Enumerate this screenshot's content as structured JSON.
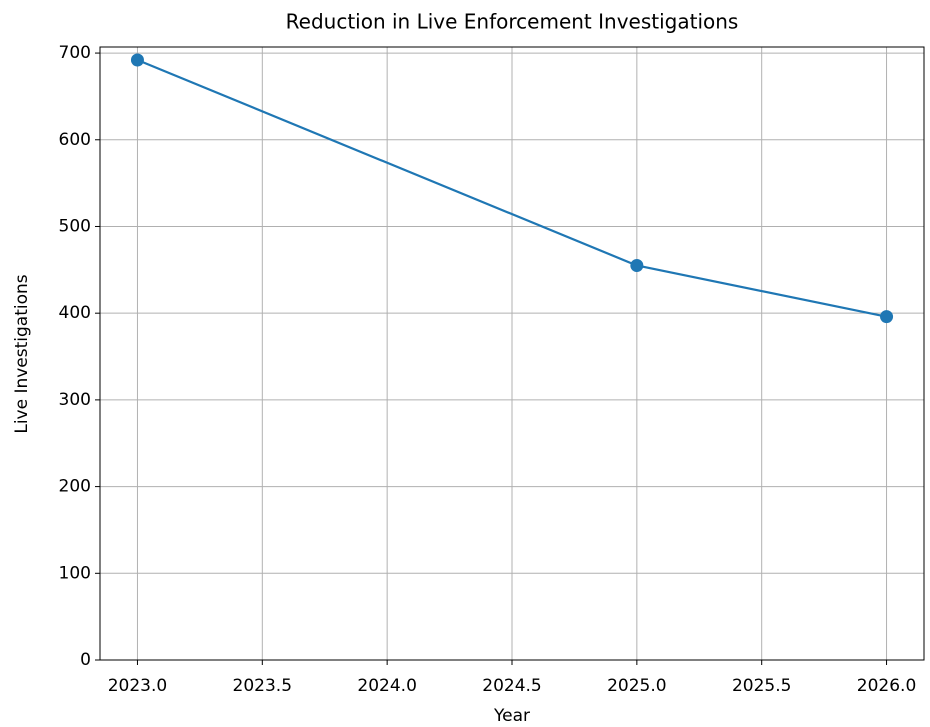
{
  "chart_data": {
    "type": "line",
    "title": "Reduction in Live Enforcement Investigations",
    "xlabel": "Year",
    "ylabel": "Live Investigations",
    "x": [
      2023,
      2025,
      2026
    ],
    "series": [
      {
        "name": "Live Investigations",
        "color": "#1f77b4",
        "values": [
          692,
          455,
          396
        ]
      }
    ],
    "xlim": [
      2022.85,
      2026.15
    ],
    "xticks": [
      {
        "value": 2023,
        "label": "2023.0"
      },
      2023.5,
      {
        "value": 2024,
        "label": "2024.0"
      },
      2024.5,
      {
        "value": 2025,
        "label": "2025.0"
      },
      2025.5,
      {
        "value": 2026,
        "label": "2026.0"
      }
    ],
    "ylim": [
      0,
      707
    ],
    "yticks": [
      0,
      100,
      200,
      300,
      400,
      500,
      600,
      700
    ],
    "grid": true
  }
}
